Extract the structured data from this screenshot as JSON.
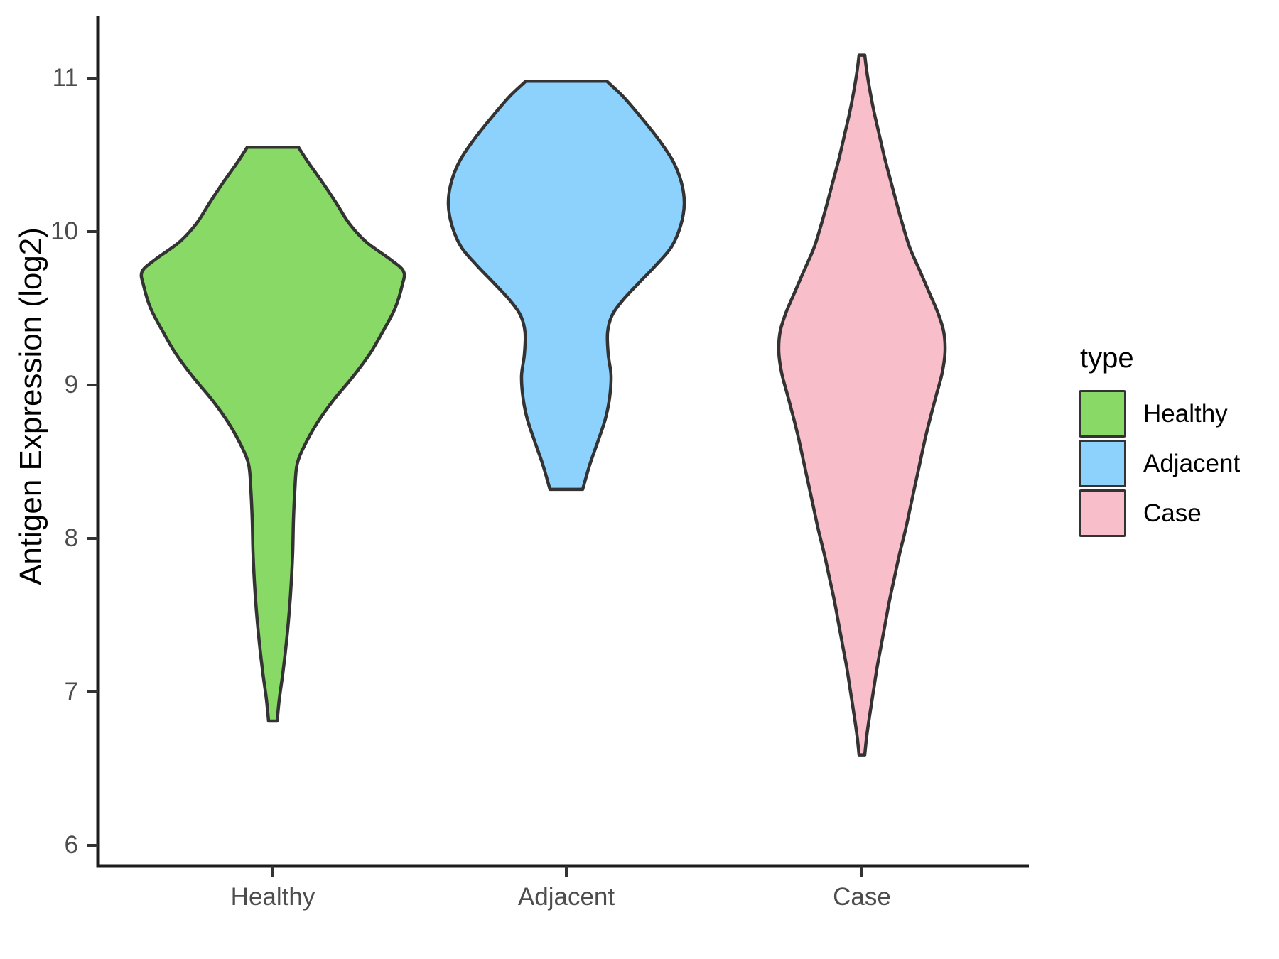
{
  "figure": {
    "kind": "violin plot",
    "background": "#FFFFFF"
  },
  "legend": {
    "title": "type",
    "entries": [
      {
        "label": "Healthy",
        "color": "#89D967"
      },
      {
        "label": "Adjacent",
        "color": "#8DD2FC"
      },
      {
        "label": "Case",
        "color": "#F8BECA"
      }
    ]
  },
  "style": {
    "violin_outline": "#333333",
    "axis_line_color": "#1C1C1C",
    "tick_mark_color": "#333333",
    "tick_label_color": "#4D4D4D",
    "text_color": "#000000"
  },
  "chart_data": {
    "type": "violin",
    "title": "",
    "xlabel": "",
    "ylabel": "Antigen Expression (log2)",
    "categories": [
      "Healthy",
      "Adjacent",
      "Case"
    ],
    "yticks": [
      6,
      7,
      8,
      9,
      10,
      11
    ],
    "ylim": [
      5.85,
      11.45
    ],
    "grid": "off",
    "legend_position": "right",
    "series": [
      {
        "name": "Healthy",
        "color": "#89D967",
        "min": 6.8,
        "max": 10.55,
        "widest_at": 9.75,
        "shape_notes": "flat truncated top, wide diamond body, long thin tail to bottom",
        "profile": [
          [
            10.55,
            36
          ],
          [
            10.45,
            50
          ],
          [
            10.32,
            70
          ],
          [
            10.18,
            90
          ],
          [
            10.05,
            108
          ],
          [
            9.93,
            132
          ],
          [
            9.82,
            165
          ],
          [
            9.74,
            184
          ],
          [
            9.65,
            182
          ],
          [
            9.5,
            172
          ],
          [
            9.35,
            155
          ],
          [
            9.2,
            136
          ],
          [
            9.05,
            112
          ],
          [
            8.9,
            85
          ],
          [
            8.75,
            62
          ],
          [
            8.6,
            44
          ],
          [
            8.48,
            34
          ],
          [
            8.32,
            31
          ],
          [
            8.12,
            29
          ],
          [
            7.92,
            28
          ],
          [
            7.72,
            26
          ],
          [
            7.52,
            23
          ],
          [
            7.32,
            19
          ],
          [
            7.12,
            14
          ],
          [
            6.95,
            9
          ],
          [
            6.81,
            6
          ]
        ]
      },
      {
        "name": "Adjacent",
        "color": "#8DD2FC",
        "min": 8.3,
        "max": 10.97,
        "widest_at": 10.2,
        "shape_notes": "broad flat top near 11, bulge above 10, narrow waist ~9.4, truncated bottom at 8.3",
        "profile": [
          [
            10.98,
            57
          ],
          [
            10.88,
            80
          ],
          [
            10.74,
            106
          ],
          [
            10.6,
            130
          ],
          [
            10.46,
            150
          ],
          [
            10.32,
            162
          ],
          [
            10.18,
            166
          ],
          [
            10.04,
            161
          ],
          [
            9.9,
            148
          ],
          [
            9.78,
            126
          ],
          [
            9.66,
            101
          ],
          [
            9.55,
            79
          ],
          [
            9.45,
            64
          ],
          [
            9.34,
            58
          ],
          [
            9.2,
            59
          ],
          [
            9.06,
            63
          ],
          [
            8.92,
            61
          ],
          [
            8.78,
            55
          ],
          [
            8.64,
            45
          ],
          [
            8.48,
            33
          ],
          [
            8.32,
            23
          ]
        ]
      },
      {
        "name": "Case",
        "color": "#F8BECA",
        "min": 6.6,
        "max": 11.15,
        "widest_at": 9.3,
        "shape_notes": "tall spindle: sharp spike top to 11.1, widest ~9.3, long taper to sharp tip ~6.6",
        "profile": [
          [
            11.15,
            4
          ],
          [
            11.04,
            7
          ],
          [
            10.9,
            12
          ],
          [
            10.76,
            18
          ],
          [
            10.62,
            25
          ],
          [
            10.48,
            32
          ],
          [
            10.34,
            40
          ],
          [
            10.2,
            48
          ],
          [
            10.05,
            57
          ],
          [
            9.9,
            67
          ],
          [
            9.75,
            81
          ],
          [
            9.6,
            95
          ],
          [
            9.47,
            107
          ],
          [
            9.35,
            115
          ],
          [
            9.22,
            117
          ],
          [
            9.08,
            113
          ],
          [
            8.94,
            105
          ],
          [
            8.8,
            97
          ],
          [
            8.65,
            89
          ],
          [
            8.5,
            82
          ],
          [
            8.35,
            75
          ],
          [
            8.2,
            68
          ],
          [
            8.05,
            61
          ],
          [
            7.9,
            53
          ],
          [
            7.75,
            46
          ],
          [
            7.6,
            39
          ],
          [
            7.45,
            33
          ],
          [
            7.3,
            27
          ],
          [
            7.15,
            21
          ],
          [
            7.0,
            16
          ],
          [
            6.85,
            11
          ],
          [
            6.72,
            7
          ],
          [
            6.59,
            4
          ]
        ]
      }
    ]
  }
}
